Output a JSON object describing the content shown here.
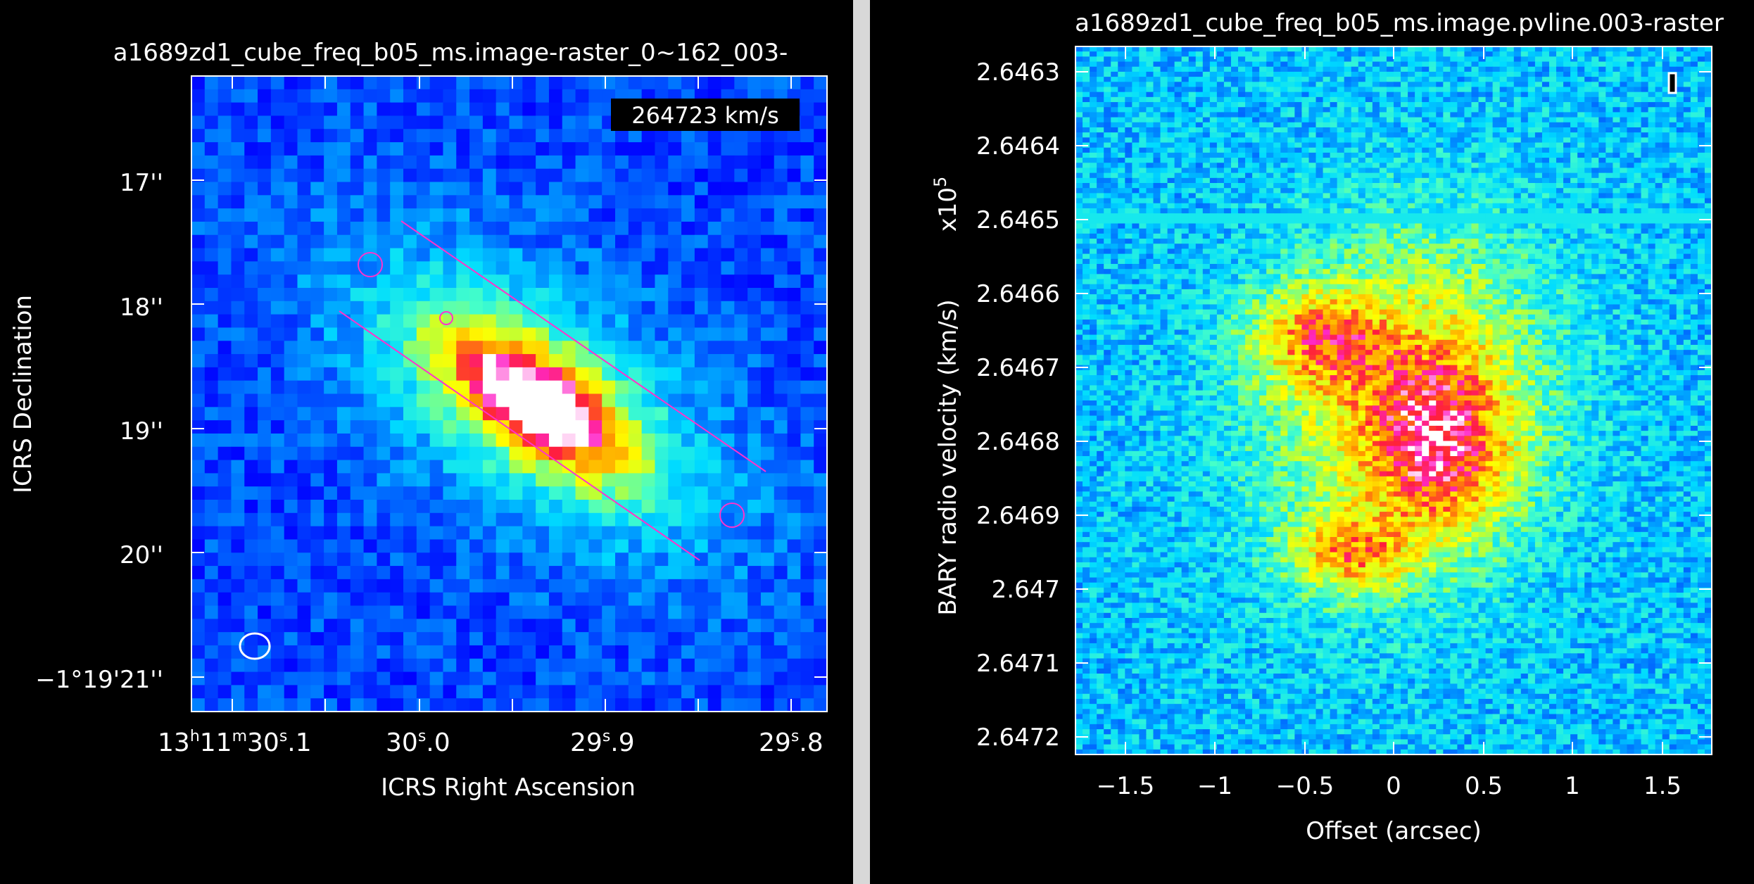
{
  "left_plot": {
    "title": "a1689zd1_cube_freq_b05_ms.image-raster_0~162_003-",
    "velocity_label": "264723 km/s",
    "xlabel": "ICRS Right Ascension",
    "ylabel": "ICRS Declination",
    "xticks": [
      {
        "h": "13",
        "m": "11",
        "s": "30",
        "f": ".1"
      },
      {
        "s": "30",
        "f": ".0"
      },
      {
        "s": "29",
        "f": ".9"
      },
      {
        "s": "29",
        "f": ".8"
      }
    ],
    "yticks": [
      "17''",
      "18''",
      "19''",
      "20''",
      "−1°19'21''"
    ],
    "region_color": "#ff33cc",
    "beam_color": "#ffffff"
  },
  "right_plot": {
    "title": "a1689zd1_cube_freq_b05_ms.image.pvline.003-raster",
    "xlabel": "Offset (arcsec)",
    "ylabel": "BARY radio velocity  (km/s)",
    "yscale_base": "x10",
    "yscale_exp": "5",
    "xticks": [
      "−1.5",
      "−1",
      "−0.5",
      "0",
      "0.5",
      "1",
      "1.5"
    ],
    "yticks": [
      "2.6463",
      "2.6464",
      "2.6465",
      "2.6466",
      "2.6467",
      "2.6468",
      "2.6469",
      "2.647",
      "2.6471",
      "2.6472"
    ]
  },
  "chart_data": [
    {
      "type": "heatmap",
      "title": "a1689zd1_cube_freq_b05_ms.image-raster_0~162_003-",
      "xlabel": "ICRS Right Ascension",
      "ylabel": "ICRS Declination",
      "x_ticks": [
        "13h11m30s.1",
        "30s.0",
        "29s.9",
        "29s.8"
      ],
      "y_ticks": [
        "17''",
        "18''",
        "19''",
        "20''",
        "−1°19'21''"
      ],
      "annotation": "264723 km/s",
      "colormap": "rainbow"
    },
    {
      "type": "heatmap",
      "title": "a1689zd1_cube_freq_b05_ms.image.pvline.003-raster",
      "xlabel": "Offset (arcsec)",
      "ylabel": "BARY radio velocity  (km/s)",
      "y_multiplier": "x10^5",
      "x_ticks": [
        -1.5,
        -1,
        -0.5,
        0,
        0.5,
        1,
        1.5
      ],
      "y_ticks": [
        2.6463,
        2.6464,
        2.6465,
        2.6466,
        2.6467,
        2.6468,
        2.6469,
        2.647,
        2.6471,
        2.6472
      ],
      "colormap": "rainbow"
    }
  ]
}
